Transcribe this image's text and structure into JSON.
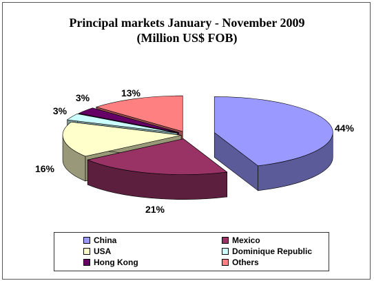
{
  "chart_data": {
    "type": "pie",
    "title": "Principal markets January - November 2009",
    "subtitle": "(Million US$ FOB)",
    "slices": [
      {
        "name": "China",
        "value": 44,
        "label": "44%",
        "color": "#9999ff",
        "side_color": "#5b5b99"
      },
      {
        "name": "Mexico",
        "value": 21,
        "label": "21%",
        "color": "#993366",
        "side_color": "#5c1f3d"
      },
      {
        "name": "USA",
        "value": 16,
        "label": "16%",
        "color": "#ffffcc",
        "side_color": "#99997a"
      },
      {
        "name": "Dominique Republic",
        "value": 3,
        "label": "3%",
        "color": "#ccffff",
        "side_color": "#7a9999"
      },
      {
        "name": "Hong Kong",
        "value": 3,
        "label": "3%",
        "color": "#660066",
        "side_color": "#3d003d"
      },
      {
        "name": "Others",
        "value": 13,
        "label": "13%",
        "color": "#ff8080",
        "side_color": "#994d4d"
      }
    ],
    "legend_position": "bottom"
  }
}
